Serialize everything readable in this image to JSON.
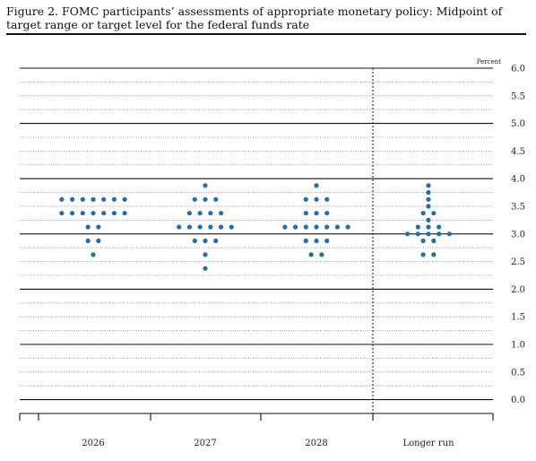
{
  "figure": {
    "title": "Figure 2. FOMC participants’ assessments of appropriate monetary policy: Midpoint of target range or target level for the federal funds rate"
  },
  "chart_data": {
    "type": "scatter",
    "title": "Figure 2. FOMC participants’ assessments of appropriate monetary policy: Midpoint of target range or target level for the federal funds rate",
    "ylabel": "Percent",
    "ylim": [
      -0.25,
      6.0
    ],
    "yticks": [
      "6.0",
      "5.5",
      "5.0",
      "4.5",
      "4.0",
      "3.5",
      "3.0",
      "2.5",
      "2.0",
      "1.5",
      "1.0",
      "0.5",
      "0.0"
    ],
    "categories": [
      "2026",
      "2027",
      "2028",
      "Longer run"
    ],
    "grid": true,
    "dot_color": "#1f6fae",
    "series": [
      {
        "category": "2026",
        "dots": [
          {
            "y": 3.625,
            "count": 7
          },
          {
            "y": 3.375,
            "count": 7
          },
          {
            "y": 3.125,
            "count": 2
          },
          {
            "y": 2.875,
            "count": 2
          },
          {
            "y": 2.625,
            "count": 1
          }
        ]
      },
      {
        "category": "2027",
        "dots": [
          {
            "y": 3.875,
            "count": 1
          },
          {
            "y": 3.625,
            "count": 3
          },
          {
            "y": 3.375,
            "count": 4
          },
          {
            "y": 3.125,
            "count": 6
          },
          {
            "y": 2.875,
            "count": 3
          },
          {
            "y": 2.625,
            "count": 1
          },
          {
            "y": 2.375,
            "count": 1
          }
        ]
      },
      {
        "category": "2028",
        "dots": [
          {
            "y": 3.875,
            "count": 1
          },
          {
            "y": 3.625,
            "count": 3
          },
          {
            "y": 3.375,
            "count": 3
          },
          {
            "y": 3.125,
            "count": 7
          },
          {
            "y": 2.875,
            "count": 3
          },
          {
            "y": 2.625,
            "count": 2
          }
        ]
      },
      {
        "category": "Longer run",
        "dots": [
          {
            "y": 3.875,
            "count": 1
          },
          {
            "y": 3.75,
            "count": 1
          },
          {
            "y": 3.625,
            "count": 1
          },
          {
            "y": 3.5,
            "count": 1
          },
          {
            "y": 3.375,
            "count": 2
          },
          {
            "y": 3.25,
            "count": 1
          },
          {
            "y": 3.125,
            "count": 3
          },
          {
            "y": 3.0,
            "count": 5
          },
          {
            "y": 2.875,
            "count": 2
          },
          {
            "y": 2.625,
            "count": 2
          }
        ]
      }
    ]
  }
}
